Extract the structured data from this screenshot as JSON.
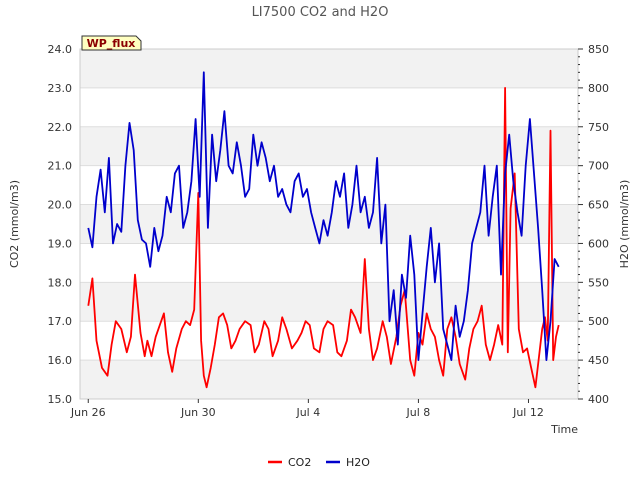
{
  "chart_data": {
    "type": "line",
    "title": "LI7500 CO2 and H2O",
    "xlabel": "Time",
    "ylabel_left": "CO2 (mmol/m3)",
    "ylabel_right": "H2O (mmol/m3)",
    "badge": "WP_flux",
    "xlim": [
      -0.3,
      17.8
    ],
    "ylim_left": [
      15.0,
      24.0
    ],
    "ylim_right": [
      400,
      850
    ],
    "x_ticks": [
      {
        "value": 0,
        "label": "Jun 26"
      },
      {
        "value": 4,
        "label": "Jun 30"
      },
      {
        "value": 8,
        "label": "Jul 4"
      },
      {
        "value": 12,
        "label": "Jul 8"
      },
      {
        "value": 16,
        "label": "Jul 12"
      }
    ],
    "left_ticks": [
      "15.0",
      "16.0",
      "17.0",
      "18.0",
      "19.0",
      "20.0",
      "21.0",
      "22.0",
      "23.0",
      "24.0"
    ],
    "right_ticks": [
      "400",
      "450",
      "500",
      "550",
      "600",
      "650",
      "700",
      "750",
      "800",
      "850"
    ],
    "grid": true,
    "legend_position": "bottom-center",
    "series": [
      {
        "name": "CO2",
        "axis": "left",
        "color": "#ff0000",
        "x": [
          0.0,
          0.15,
          0.3,
          0.5,
          0.7,
          0.85,
          1.0,
          1.2,
          1.4,
          1.55,
          1.7,
          1.9,
          2.05,
          2.15,
          2.3,
          2.45,
          2.6,
          2.75,
          2.9,
          3.05,
          3.2,
          3.4,
          3.55,
          3.7,
          3.85,
          4.0,
          4.1,
          4.2,
          4.3,
          4.45,
          4.6,
          4.75,
          4.9,
          5.05,
          5.2,
          5.35,
          5.5,
          5.7,
          5.9,
          6.05,
          6.2,
          6.4,
          6.55,
          6.7,
          6.9,
          7.05,
          7.2,
          7.4,
          7.6,
          7.75,
          7.9,
          8.05,
          8.2,
          8.4,
          8.55,
          8.7,
          8.9,
          9.05,
          9.2,
          9.4,
          9.55,
          9.7,
          9.9,
          10.05,
          10.2,
          10.35,
          10.5,
          10.7,
          10.85,
          11.0,
          11.2,
          11.35,
          11.5,
          11.7,
          11.85,
          12.0,
          12.15,
          12.3,
          12.45,
          12.6,
          12.75,
          12.9,
          13.05,
          13.2,
          13.35,
          13.5,
          13.7,
          13.85,
          14.0,
          14.15,
          14.3,
          14.45,
          14.6,
          14.75,
          14.9,
          15.05,
          15.15,
          15.25,
          15.35,
          15.5,
          15.65,
          15.8,
          15.95,
          16.1,
          16.25,
          16.4,
          16.5,
          16.6,
          16.7,
          16.8,
          16.9,
          17.0,
          17.1
        ],
        "values": [
          17.4,
          18.1,
          16.5,
          15.8,
          15.6,
          16.4,
          17.0,
          16.8,
          16.2,
          16.6,
          18.2,
          16.7,
          16.1,
          16.5,
          16.1,
          16.6,
          16.9,
          17.2,
          16.2,
          15.7,
          16.3,
          16.8,
          17.0,
          16.9,
          17.3,
          20.3,
          16.5,
          15.6,
          15.3,
          15.8,
          16.4,
          17.1,
          17.2,
          16.9,
          16.3,
          16.5,
          16.8,
          17.0,
          16.9,
          16.2,
          16.4,
          17.0,
          16.8,
          16.1,
          16.5,
          17.1,
          16.8,
          16.3,
          16.5,
          16.7,
          17.0,
          16.9,
          16.3,
          16.2,
          16.8,
          17.0,
          16.9,
          16.2,
          16.1,
          16.5,
          17.3,
          17.1,
          16.7,
          18.6,
          16.8,
          16.0,
          16.3,
          17.0,
          16.6,
          15.9,
          16.6,
          17.4,
          17.8,
          16.0,
          15.6,
          16.7,
          16.4,
          17.2,
          16.8,
          16.6,
          16.0,
          15.6,
          16.8,
          17.1,
          16.6,
          15.9,
          15.5,
          16.3,
          16.8,
          17.0,
          17.4,
          16.4,
          16.0,
          16.4,
          16.9,
          16.4,
          23.0,
          16.2,
          19.9,
          20.8,
          16.8,
          16.2,
          16.3,
          15.8,
          15.3,
          16.2,
          16.8,
          17.1,
          16.5,
          21.9,
          16.0,
          16.6,
          16.9
        ]
      },
      {
        "name": "H2O",
        "axis": "right",
        "color": "#0000cc",
        "x": [
          0.0,
          0.15,
          0.3,
          0.45,
          0.6,
          0.75,
          0.9,
          1.05,
          1.2,
          1.35,
          1.5,
          1.65,
          1.8,
          1.95,
          2.1,
          2.25,
          2.4,
          2.55,
          2.7,
          2.85,
          3.0,
          3.15,
          3.3,
          3.45,
          3.6,
          3.75,
          3.9,
          4.05,
          4.2,
          4.35,
          4.5,
          4.65,
          4.8,
          4.95,
          5.1,
          5.25,
          5.4,
          5.55,
          5.7,
          5.85,
          6.0,
          6.15,
          6.3,
          6.45,
          6.6,
          6.75,
          6.9,
          7.05,
          7.2,
          7.35,
          7.5,
          7.65,
          7.8,
          7.95,
          8.1,
          8.25,
          8.4,
          8.55,
          8.7,
          8.85,
          9.0,
          9.15,
          9.3,
          9.45,
          9.6,
          9.75,
          9.9,
          10.05,
          10.2,
          10.35,
          10.5,
          10.65,
          10.8,
          10.95,
          11.1,
          11.25,
          11.4,
          11.55,
          11.7,
          11.85,
          12.0,
          12.15,
          12.3,
          12.45,
          12.6,
          12.75,
          12.9,
          13.05,
          13.2,
          13.35,
          13.5,
          13.65,
          13.8,
          13.95,
          14.1,
          14.25,
          14.4,
          14.55,
          14.7,
          14.85,
          15.0,
          15.15,
          15.3,
          15.45,
          15.6,
          15.75,
          15.9,
          16.05,
          16.2,
          16.35,
          16.5,
          16.65,
          16.8,
          16.95,
          17.1
        ],
        "values": [
          620,
          595,
          660,
          695,
          640,
          710,
          600,
          625,
          615,
          700,
          755,
          720,
          630,
          605,
          600,
          570,
          620,
          590,
          610,
          660,
          640,
          690,
          700,
          620,
          640,
          680,
          760,
          660,
          820,
          620,
          740,
          680,
          720,
          770,
          700,
          690,
          730,
          700,
          660,
          670,
          740,
          700,
          730,
          710,
          680,
          700,
          660,
          670,
          650,
          640,
          680,
          690,
          660,
          670,
          640,
          620,
          600,
          630,
          610,
          640,
          680,
          660,
          690,
          620,
          650,
          700,
          640,
          660,
          620,
          640,
          710,
          600,
          650,
          500,
          540,
          470,
          560,
          530,
          610,
          560,
          450,
          510,
          570,
          620,
          550,
          600,
          490,
          470,
          450,
          520,
          480,
          500,
          540,
          600,
          620,
          640,
          700,
          610,
          660,
          700,
          560,
          690,
          740,
          680,
          640,
          610,
          700,
          760,
          690,
          620,
          540,
          450,
          500,
          580,
          570
        ]
      }
    ]
  }
}
